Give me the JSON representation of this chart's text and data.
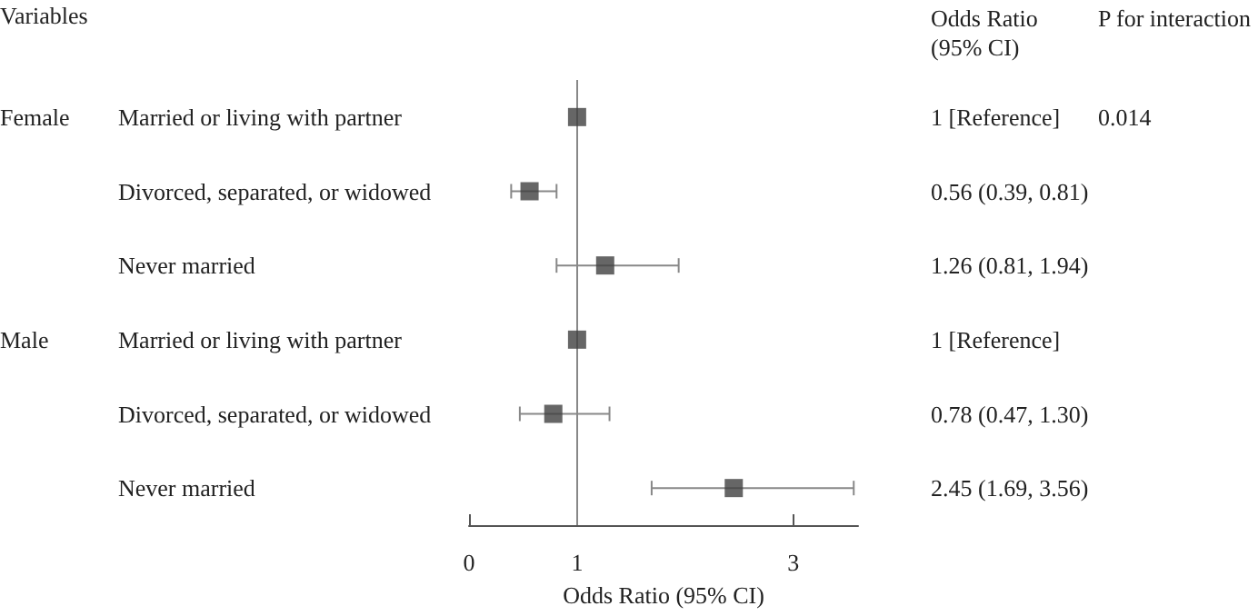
{
  "chart_data": {
    "type": "scatter",
    "orientation": "horizontal",
    "ylabel": "Variables",
    "xlabel": "Odds Ratio (95% CI)",
    "categories": [
      "Married or living with partner",
      "Divorced, separated, or widowed",
      "Never married",
      "Married or living with partner",
      "Divorced, separated, or widowed",
      "Never married"
    ],
    "values": [
      1,
      0.56,
      1.26,
      1,
      0.78,
      2.45
    ],
    "errors": [
      null,
      [
        0.39,
        0.81
      ],
      [
        0.81,
        1.94
      ],
      null,
      [
        0.47,
        1.3
      ],
      [
        1.69,
        3.56
      ]
    ],
    "color": "#404040",
    "marker": "square",
    "grid": false,
    "xlim": [
      0,
      3.6
    ],
    "xticks": [
      0,
      1,
      3
    ],
    "ref_lines": [
      {
        "axis": "x",
        "value": 1,
        "color": "#888888"
      }
    ],
    "annotations": [
      "Odds Ratio\n(95% CI)",
      "P for interaction",
      "0.014",
      "Female",
      "Male",
      "1 [Reference]",
      "0.56 (0.39, 0.81)",
      "1.26 (0.81, 1.94)",
      "1 [Reference]",
      "0.78 (0.47, 1.30)",
      "2.45 (1.69, 3.56)"
    ]
  }
}
